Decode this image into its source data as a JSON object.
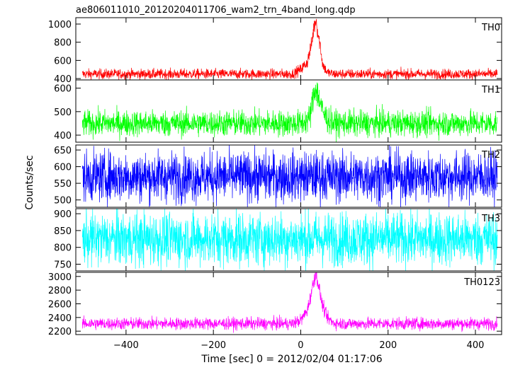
{
  "chart_data": {
    "type": "line",
    "title": "ae806011010_20120204011706_wam2_trn_4band_long.qdp",
    "xlabel": "Time [sec] 0 = 2012/02/04 01:17:06",
    "ylabel": "Counts/sec",
    "xlim": [
      -515,
      460
    ],
    "xticks": [
      -400,
      -200,
      0,
      200,
      400
    ],
    "grid": false,
    "panels": [
      {
        "name": "TH0",
        "color": "#ff0000",
        "ylim": [
          385,
          1070
        ],
        "yticks": [
          400,
          600,
          800,
          1000
        ],
        "x": [
          -500,
          -400,
          -300,
          -200,
          -100,
          -20,
          0,
          15,
          25,
          30,
          35,
          40,
          45,
          50,
          60,
          75,
          100,
          200,
          300,
          400,
          450
        ],
        "baseline": [
          450,
          450,
          450,
          450,
          450,
          450,
          500,
          580,
          780,
          960,
          1060,
          880,
          760,
          560,
          470,
          450,
          450,
          450,
          450,
          450,
          450
        ],
        "noise": 28
      },
      {
        "name": "TH1",
        "color": "#00ff00",
        "ylim": [
          370,
          635
        ],
        "yticks": [
          400,
          500,
          600
        ],
        "x": [
          -500,
          -300,
          -100,
          0,
          20,
          25,
          30,
          35,
          40,
          45,
          50,
          60,
          75,
          100,
          300,
          450
        ],
        "baseline": [
          450,
          450,
          450,
          450,
          470,
          520,
          570,
          610,
          560,
          540,
          500,
          470,
          450,
          450,
          450,
          450
        ],
        "noise": 28
      },
      {
        "name": "TH2",
        "color": "#0000ff",
        "ylim": [
          478,
          665
        ],
        "yticks": [
          500,
          550,
          600,
          650
        ],
        "x": [
          -500,
          450
        ],
        "baseline": [
          570,
          570
        ],
        "noise": 38
      },
      {
        "name": "TH3",
        "color": "#00ffff",
        "ylim": [
          730,
          915
        ],
        "yticks": [
          750,
          800,
          850,
          900
        ],
        "x": [
          -500,
          450
        ],
        "baseline": [
          825,
          825
        ],
        "noise": 40
      },
      {
        "name": "TH0123",
        "color": "#ff00ff",
        "ylim": [
          2150,
          3060
        ],
        "yticks": [
          2200,
          2400,
          2600,
          2800,
          3000
        ],
        "x": [
          -500,
          -300,
          -100,
          -20,
          0,
          15,
          25,
          30,
          35,
          40,
          45,
          50,
          60,
          75,
          100,
          300,
          450
        ],
        "baseline": [
          2310,
          2310,
          2310,
          2310,
          2360,
          2500,
          2780,
          2950,
          3040,
          2900,
          2720,
          2580,
          2400,
          2320,
          2310,
          2310,
          2310
        ],
        "noise": 45
      }
    ]
  }
}
